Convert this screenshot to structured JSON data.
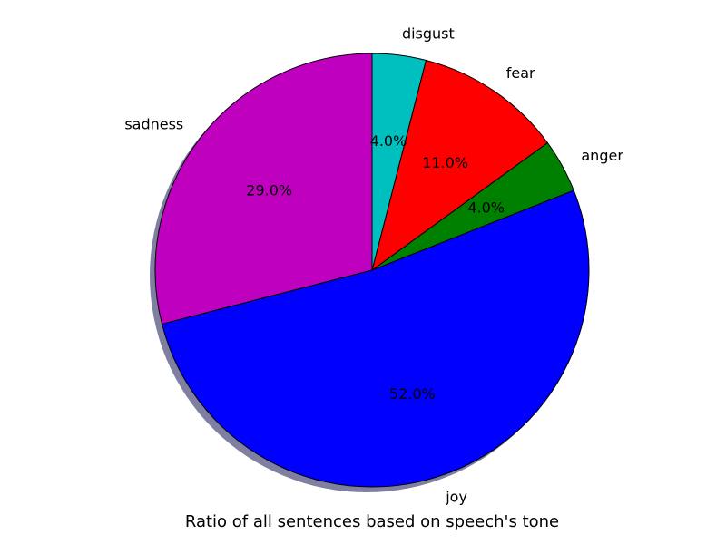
{
  "chart_data": {
    "type": "pie",
    "title": "Ratio of all sentences based on speech's tone",
    "shadow": true,
    "start_angle_deg": 90,
    "direction": "counterclockwise",
    "slices": [
      {
        "label": "sadness",
        "value": 29.0,
        "pct_label": "29.0%",
        "color": "#bf00bf"
      },
      {
        "label": "joy",
        "value": 52.0,
        "pct_label": "52.0%",
        "color": "#0000ff"
      },
      {
        "label": "anger",
        "value": 4.0,
        "pct_label": "4.0%",
        "color": "#008000"
      },
      {
        "label": "fear",
        "value": 11.0,
        "pct_label": "11.0%",
        "color": "#ff0000"
      },
      {
        "label": "disgust",
        "value": 4.0,
        "pct_label": "4.0%",
        "color": "#00bfbf"
      }
    ]
  }
}
